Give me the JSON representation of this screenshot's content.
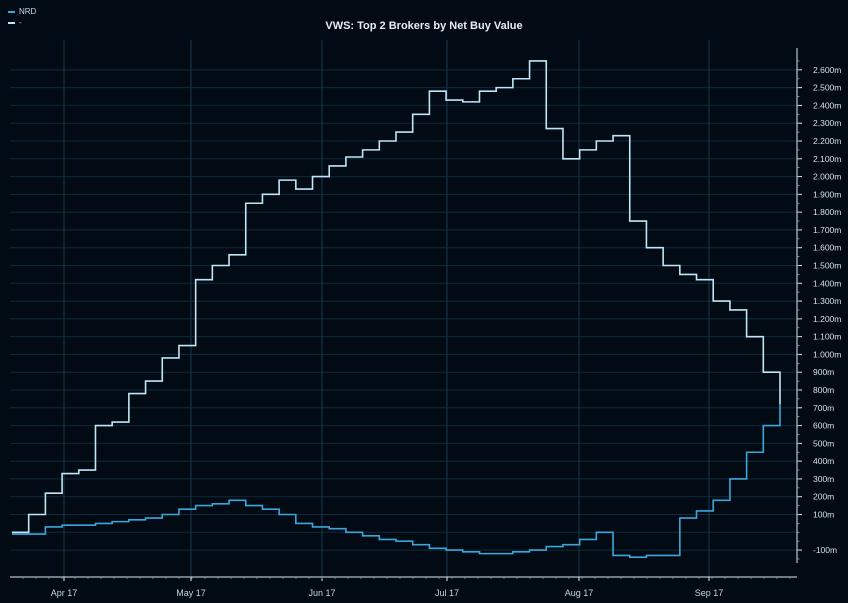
{
  "chart_data": {
    "type": "line",
    "title": "VWS: Top 2 Brokers by Net Buy Value",
    "xlabel": "",
    "ylabel": "",
    "x_ticks": [
      "Apr 17",
      "May 17",
      "Jun 17",
      "Jul 17",
      "Aug 17",
      "Sep 17"
    ],
    "y_ticks": [
      "-100m",
      "100m",
      "200m",
      "300m",
      "400m",
      "500m",
      "600m",
      "700m",
      "800m",
      "900m",
      "1.000m",
      "1.100m",
      "1.200m",
      "1.300m",
      "1.400m",
      "1.500m",
      "1.600m",
      "1.700m",
      "1.800m",
      "1.900m",
      "2.000m",
      "2.100m",
      "2.200m",
      "2.300m",
      "2.400m",
      "2.500m",
      "2.600m"
    ],
    "ylim": [
      -200,
      2700
    ],
    "grid": true,
    "legend_position": "top-left",
    "x_days": [
      0,
      4,
      8,
      12,
      16,
      20,
      24,
      28,
      32,
      36,
      40,
      44,
      48,
      52,
      56,
      60,
      64,
      68,
      72,
      76,
      80,
      84,
      88,
      92,
      96,
      100,
      104,
      108,
      112,
      116,
      120,
      124,
      128,
      132,
      136,
      140,
      144,
      148,
      152,
      156,
      160,
      164,
      168,
      172,
      176,
      180,
      184
    ],
    "series": [
      {
        "name": "NRD",
        "color": "#3aa6dc",
        "values": [
          -10,
          -10,
          30,
          40,
          40,
          50,
          60,
          70,
          80,
          100,
          130,
          150,
          160,
          180,
          150,
          130,
          100,
          50,
          30,
          20,
          0,
          -20,
          -40,
          -50,
          -70,
          -90,
          -100,
          -110,
          -120,
          -120,
          -110,
          -100,
          -80,
          -70,
          -40,
          0,
          -130,
          -140,
          -130,
          -130,
          80,
          120,
          180,
          300,
          450,
          600,
          720
        ]
      },
      {
        "name": "-",
        "color": "#bfe6f6",
        "values": [
          0,
          100,
          220,
          330,
          350,
          600,
          620,
          780,
          850,
          980,
          1050,
          1420,
          1500,
          1560,
          1850,
          1900,
          1980,
          1930,
          2000,
          2060,
          2110,
          2150,
          2200,
          2250,
          2350,
          2480,
          2430,
          2420,
          2480,
          2500,
          2550,
          2650,
          2270,
          2100,
          2150,
          2200,
          2230,
          1750,
          1600,
          1500,
          1450,
          1420,
          1300,
          1250,
          1100,
          900,
          720
        ]
      }
    ]
  }
}
